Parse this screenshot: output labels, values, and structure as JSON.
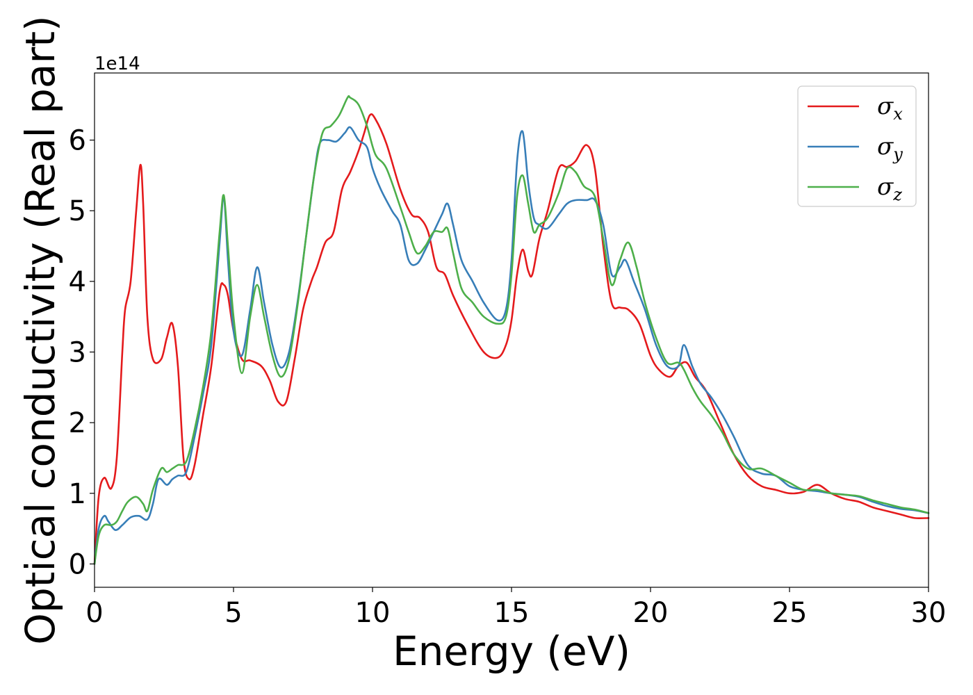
{
  "chart_data": {
    "type": "line",
    "xlabel": "Energy (eV)",
    "ylabel": "Optical conductivity (Real part)",
    "y_offset_label": "1e14",
    "xlim": [
      0,
      30
    ],
    "ylim": [
      -0.33,
      6.95
    ],
    "xticks": [
      0,
      5,
      10,
      15,
      20,
      25,
      30
    ],
    "yticks": [
      0,
      1,
      2,
      3,
      4,
      5,
      6
    ],
    "grid": false,
    "legend_position": "top-right",
    "series": [
      {
        "name": "σx",
        "symbol": "σ",
        "subscript": "x",
        "color": "#e41a1c",
        "x": [
          0,
          0.15,
          0.35,
          0.6,
          0.8,
          1.0,
          1.1,
          1.3,
          1.5,
          1.65,
          1.75,
          1.9,
          2.1,
          2.4,
          2.6,
          2.8,
          3.0,
          3.2,
          3.4,
          3.6,
          3.9,
          4.2,
          4.5,
          4.65,
          4.8,
          5.0,
          5.3,
          5.6,
          6.0,
          6.3,
          6.6,
          6.9,
          7.2,
          7.5,
          7.8,
          8.0,
          8.3,
          8.6,
          8.9,
          9.2,
          9.5,
          9.7,
          9.9,
          10.1,
          10.5,
          11.0,
          11.4,
          11.7,
          12.0,
          12.3,
          12.6,
          12.9,
          13.4,
          14.0,
          14.5,
          14.8,
          15.0,
          15.2,
          15.4,
          15.6,
          15.75,
          16.0,
          16.3,
          16.7,
          17.0,
          17.3,
          17.7,
          18.0,
          18.3,
          18.6,
          18.9,
          19.2,
          19.6,
          20.0,
          20.3,
          20.7,
          21.0,
          21.3,
          21.6,
          22.0,
          22.5,
          23.0,
          23.5,
          24.0,
          24.5,
          25.0,
          25.5,
          26.0,
          26.5,
          27.0,
          27.5,
          28.0,
          28.5,
          29.0,
          29.5,
          30.0
        ],
        "values": [
          0,
          0.95,
          1.22,
          1.07,
          1.5,
          3.0,
          3.6,
          4.0,
          5.0,
          5.65,
          5.1,
          3.5,
          2.9,
          2.9,
          3.2,
          3.4,
          2.8,
          1.5,
          1.2,
          1.4,
          2.1,
          2.8,
          3.85,
          3.95,
          3.8,
          3.3,
          2.9,
          2.88,
          2.8,
          2.6,
          2.3,
          2.3,
          2.9,
          3.6,
          4.0,
          4.2,
          4.55,
          4.7,
          5.3,
          5.55,
          5.85,
          6.1,
          6.35,
          6.3,
          5.95,
          5.3,
          4.95,
          4.9,
          4.7,
          4.2,
          4.1,
          3.8,
          3.4,
          3.0,
          2.92,
          3.1,
          3.45,
          4.1,
          4.45,
          4.15,
          4.1,
          4.6,
          5.0,
          5.6,
          5.62,
          5.7,
          5.93,
          5.6,
          4.5,
          3.7,
          3.63,
          3.6,
          3.4,
          2.95,
          2.75,
          2.65,
          2.8,
          2.85,
          2.65,
          2.45,
          2.0,
          1.55,
          1.25,
          1.1,
          1.05,
          1.0,
          1.02,
          1.12,
          1.0,
          0.92,
          0.88,
          0.8,
          0.75,
          0.7,
          0.65,
          0.65
        ]
      },
      {
        "name": "σy",
        "symbol": "σ",
        "subscript": "y",
        "color": "#377eb8",
        "x": [
          0,
          0.15,
          0.35,
          0.5,
          0.75,
          1.0,
          1.3,
          1.6,
          1.9,
          2.1,
          2.3,
          2.6,
          2.8,
          3.0,
          3.3,
          3.6,
          3.9,
          4.2,
          4.5,
          4.65,
          4.8,
          5.0,
          5.3,
          5.6,
          5.85,
          6.1,
          6.4,
          6.7,
          7.0,
          7.3,
          7.6,
          7.9,
          8.1,
          8.4,
          8.7,
          9.0,
          9.2,
          9.5,
          9.8,
          10.0,
          10.3,
          10.7,
          11.0,
          11.3,
          11.6,
          11.9,
          12.2,
          12.5,
          12.7,
          12.9,
          13.2,
          13.6,
          14.0,
          14.5,
          14.8,
          15.0,
          15.2,
          15.4,
          15.6,
          15.8,
          16.0,
          16.3,
          16.7,
          17.0,
          17.3,
          17.7,
          18.0,
          18.3,
          18.6,
          18.9,
          19.1,
          19.4,
          19.8,
          20.2,
          20.6,
          21.0,
          21.2,
          21.5,
          21.8,
          22.2,
          22.6,
          23.0,
          23.5,
          24.0,
          24.5,
          25.0,
          25.5,
          26.0,
          26.5,
          27.0,
          27.5,
          28.0,
          28.5,
          29.0,
          29.5,
          30.0
        ],
        "values": [
          0,
          0.5,
          0.68,
          0.6,
          0.48,
          0.55,
          0.66,
          0.68,
          0.63,
          0.85,
          1.2,
          1.12,
          1.2,
          1.25,
          1.3,
          1.8,
          2.4,
          3.1,
          4.55,
          5.2,
          4.3,
          3.3,
          2.95,
          3.6,
          4.2,
          3.7,
          3.1,
          2.78,
          3.0,
          3.7,
          4.6,
          5.5,
          5.95,
          6.0,
          5.98,
          6.1,
          6.18,
          6.0,
          5.9,
          5.6,
          5.3,
          5.0,
          4.8,
          4.3,
          4.25,
          4.45,
          4.7,
          4.95,
          5.1,
          4.8,
          4.3,
          4.0,
          3.7,
          3.45,
          3.6,
          4.3,
          5.7,
          6.12,
          5.4,
          4.9,
          4.8,
          4.75,
          4.95,
          5.1,
          5.15,
          5.15,
          5.15,
          4.8,
          4.1,
          4.2,
          4.3,
          4.0,
          3.6,
          3.1,
          2.8,
          2.8,
          3.1,
          2.8,
          2.55,
          2.35,
          2.1,
          1.8,
          1.4,
          1.28,
          1.25,
          1.1,
          1.05,
          1.03,
          1.0,
          0.98,
          0.95,
          0.88,
          0.82,
          0.78,
          0.76,
          0.72
        ]
      },
      {
        "name": "σz",
        "symbol": "σ",
        "subscript": "z",
        "color": "#4daf4a",
        "x": [
          0,
          0.15,
          0.35,
          0.6,
          0.8,
          1.0,
          1.2,
          1.5,
          1.75,
          1.9,
          2.1,
          2.4,
          2.6,
          2.8,
          3.0,
          3.3,
          3.6,
          3.9,
          4.2,
          4.5,
          4.65,
          4.8,
          5.0,
          5.3,
          5.6,
          5.85,
          6.1,
          6.4,
          6.7,
          7.0,
          7.3,
          7.6,
          7.9,
          8.2,
          8.5,
          8.8,
          9.1,
          9.2,
          9.5,
          9.8,
          10.1,
          10.5,
          11.0,
          11.3,
          11.6,
          11.9,
          12.2,
          12.5,
          12.7,
          12.9,
          13.2,
          13.6,
          14.0,
          14.5,
          14.8,
          15.0,
          15.2,
          15.4,
          15.6,
          15.8,
          16.0,
          16.3,
          16.7,
          17.0,
          17.3,
          17.6,
          18.0,
          18.3,
          18.6,
          18.9,
          19.2,
          19.5,
          19.8,
          20.2,
          20.6,
          21.0,
          21.2,
          21.5,
          21.8,
          22.2,
          22.6,
          23.0,
          23.5,
          24.0,
          24.5,
          25.0,
          25.5,
          26.0,
          26.5,
          27.0,
          27.5,
          28.0,
          28.5,
          29.0,
          29.5,
          30.0
        ],
        "values": [
          0,
          0.4,
          0.55,
          0.55,
          0.6,
          0.75,
          0.88,
          0.95,
          0.85,
          0.75,
          1.05,
          1.35,
          1.3,
          1.35,
          1.4,
          1.45,
          1.9,
          2.5,
          3.3,
          4.7,
          5.22,
          4.5,
          3.5,
          2.7,
          3.5,
          3.95,
          3.5,
          2.95,
          2.65,
          2.9,
          3.65,
          4.6,
          5.5,
          6.1,
          6.2,
          6.35,
          6.6,
          6.6,
          6.5,
          6.2,
          5.8,
          5.6,
          5.05,
          4.7,
          4.4,
          4.5,
          4.7,
          4.7,
          4.75,
          4.4,
          3.9,
          3.7,
          3.5,
          3.4,
          3.5,
          4.1,
          5.2,
          5.5,
          5.1,
          4.7,
          4.8,
          4.9,
          5.25,
          5.6,
          5.55,
          5.35,
          5.2,
          4.6,
          3.95,
          4.3,
          4.55,
          4.2,
          3.7,
          3.2,
          2.85,
          2.85,
          2.75,
          2.5,
          2.3,
          2.1,
          1.85,
          1.55,
          1.35,
          1.35,
          1.25,
          1.15,
          1.05,
          1.05,
          1.0,
          0.98,
          0.96,
          0.9,
          0.85,
          0.8,
          0.77,
          0.72
        ]
      }
    ]
  }
}
